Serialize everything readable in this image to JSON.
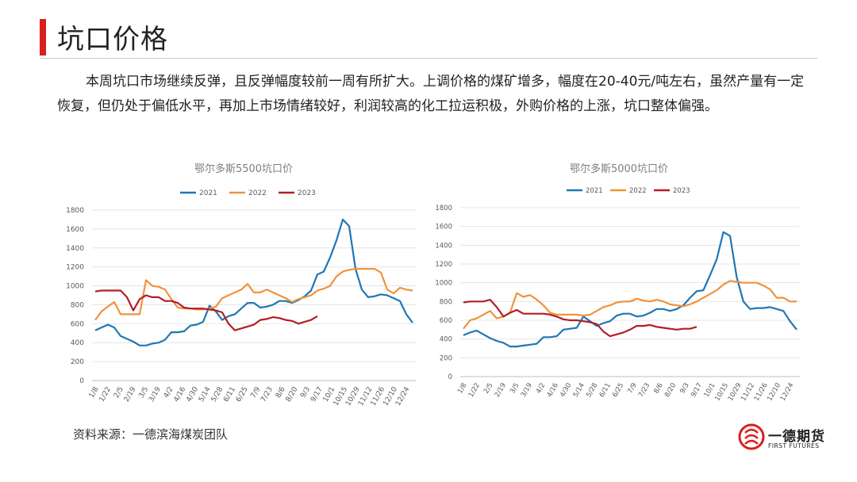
{
  "header": {
    "title": "坑口价格",
    "accent_color": "#d8201f"
  },
  "paragraph": "本周坑口市场继续反弹，且反弹幅度较前一周有所扩大。上调价格的煤矿增多，幅度在20-40元/吨左右，虽然产量有一定恢复，但仍处于偏低水平，再加上市场情绪较好，利润较高的化工拉运积极，外购价格的上涨，坑口整体偏强。",
  "source": "资料来源：一德滨海煤炭团队",
  "logo": {
    "name_cn": "一德期货",
    "name_en": "FIRST FUTURES"
  },
  "chart_data": [
    {
      "type": "line",
      "title": "鄂尔多斯5500坑口价",
      "x_tick_labels": [
        "1/8",
        "1/22",
        "2/5",
        "2/19",
        "3/5",
        "3/19",
        "4/2",
        "4/16",
        "4/30",
        "5/14",
        "5/28",
        "6/11",
        "6/25",
        "7/9",
        "7/23",
        "8/6",
        "8/20",
        "9/3",
        "9/17",
        "10/1",
        "10/15",
        "10/29",
        "11/12",
        "11/26",
        "12/10",
        "12/24"
      ],
      "ylim": [
        0,
        1800
      ],
      "yticks": [
        0,
        200,
        400,
        600,
        800,
        1000,
        1200,
        1400,
        1600,
        1800
      ],
      "legend_position": "top",
      "grid": "horizontal",
      "series": [
        {
          "name": "2021",
          "color": "#1f77b4",
          "values": [
            530,
            560,
            590,
            560,
            470,
            440,
            410,
            370,
            370,
            390,
            400,
            430,
            510,
            510,
            520,
            580,
            590,
            620,
            790,
            730,
            640,
            680,
            700,
            760,
            820,
            820,
            770,
            780,
            800,
            840,
            840,
            820,
            850,
            890,
            950,
            1120,
            1150,
            1300,
            1480,
            1700,
            1630,
            1180,
            960,
            880,
            890,
            910,
            900,
            870,
            840,
            700,
            610
          ]
        },
        {
          "name": "2022",
          "color": "#f0923c",
          "values": [
            640,
            730,
            780,
            830,
            700,
            700,
            700,
            700,
            1060,
            1000,
            990,
            960,
            860,
            770,
            760,
            760,
            750,
            750,
            760,
            780,
            870,
            900,
            930,
            960,
            1020,
            930,
            930,
            960,
            930,
            900,
            870,
            830,
            860,
            880,
            900,
            950,
            970,
            1000,
            1100,
            1150,
            1170,
            1180,
            1180,
            1180,
            1180,
            1140,
            960,
            920,
            980,
            960,
            950
          ]
        },
        {
          "name": "2023",
          "color": "#b11e25",
          "values": [
            940,
            950,
            950,
            950,
            950,
            880,
            740,
            860,
            900,
            880,
            880,
            840,
            840,
            820,
            770,
            760,
            760,
            760,
            750,
            740,
            720,
            600,
            530,
            550,
            570,
            590,
            640,
            650,
            670,
            660,
            640,
            630,
            600,
            620,
            640,
            680
          ]
        }
      ]
    },
    {
      "type": "line",
      "title": "鄂尔多斯5000坑口价",
      "x_tick_labels": [
        "1/8",
        "1/22",
        "2/5",
        "2/19",
        "3/5",
        "3/19",
        "4/2",
        "4/16",
        "4/30",
        "5/14",
        "5/28",
        "6/11",
        "6/25",
        "7/9",
        "7/23",
        "8/6",
        "8/20",
        "9/3",
        "9/17",
        "10/1",
        "10/15",
        "10/29",
        "11/12",
        "11/26",
        "12/10",
        "12/24"
      ],
      "ylim": [
        0,
        1800
      ],
      "yticks": [
        0,
        200,
        400,
        600,
        800,
        1000,
        1200,
        1400,
        1600,
        1800
      ],
      "legend_position": "top",
      "grid": "horizontal",
      "series": [
        {
          "name": "2021",
          "color": "#1f77b4",
          "values": [
            440,
            470,
            490,
            450,
            410,
            380,
            360,
            320,
            320,
            330,
            340,
            350,
            420,
            420,
            430,
            500,
            510,
            520,
            640,
            590,
            540,
            570,
            590,
            650,
            670,
            670,
            640,
            650,
            680,
            720,
            720,
            700,
            720,
            760,
            840,
            910,
            920,
            1080,
            1250,
            1540,
            1500,
            1060,
            800,
            720,
            730,
            730,
            740,
            720,
            700,
            590,
            500
          ]
        },
        {
          "name": "2022",
          "color": "#f0923c",
          "values": [
            510,
            600,
            620,
            660,
            700,
            620,
            640,
            680,
            890,
            850,
            870,
            820,
            760,
            680,
            660,
            660,
            660,
            660,
            650,
            660,
            700,
            740,
            760,
            790,
            800,
            800,
            830,
            810,
            800,
            820,
            800,
            770,
            760,
            750,
            770,
            800,
            840,
            880,
            920,
            980,
            1020,
            1010,
            1000,
            1000,
            1000,
            970,
            930,
            840,
            840,
            800,
            800
          ]
        },
        {
          "name": "2023",
          "color": "#b11e25",
          "values": [
            790,
            800,
            800,
            800,
            820,
            740,
            640,
            680,
            710,
            670,
            670,
            670,
            670,
            660,
            640,
            610,
            600,
            600,
            590,
            580,
            560,
            480,
            430,
            450,
            470,
            500,
            540,
            540,
            550,
            530,
            520,
            510,
            500,
            510,
            510,
            530
          ]
        }
      ]
    }
  ]
}
